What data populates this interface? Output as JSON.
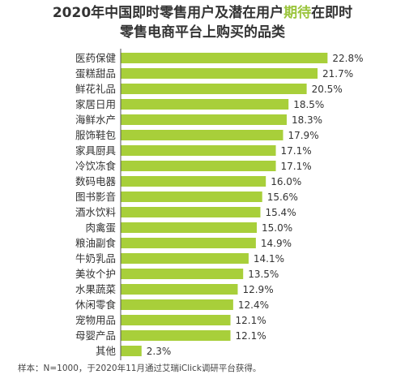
{
  "title": {
    "line1_part1": "2020年中国即时零售用户及潜在用户",
    "line1_highlight": "期待",
    "line1_part2": "在即时",
    "line2": "零售电商平台上购买的品类"
  },
  "footnote": "样本：N=1000，于2020年11月通过艾瑞iClick调研平台获得。",
  "colors": {
    "bar": "#a8cf3a",
    "highlight": "#9bc53d",
    "text": "#333333",
    "axis": "#555555"
  },
  "chart_data": {
    "type": "bar",
    "orientation": "horizontal",
    "categories": [
      "医药保健",
      "蛋糕甜品",
      "鲜花礼品",
      "家居日用",
      "海鲜水产",
      "服饰鞋包",
      "家具厨具",
      "冷饮冻食",
      "数码电器",
      "图书影音",
      "酒水饮料",
      "肉禽蛋",
      "粮油副食",
      "牛奶乳品",
      "美妆个护",
      "水果蔬菜",
      "休闲零食",
      "宠物用品",
      "母婴产品",
      "其他"
    ],
    "values": [
      22.8,
      21.7,
      20.5,
      18.5,
      18.3,
      17.9,
      17.1,
      17.1,
      16.0,
      15.6,
      15.4,
      15.0,
      14.9,
      14.1,
      13.5,
      12.9,
      12.4,
      12.1,
      12.1,
      2.3
    ],
    "value_labels": [
      "22.8%",
      "21.7%",
      "20.5%",
      "18.5%",
      "18.3%",
      "17.9%",
      "17.1%",
      "17.1%",
      "16.0%",
      "15.6%",
      "15.4%",
      "15.0%",
      "14.9%",
      "14.1%",
      "13.5%",
      "12.9%",
      "12.4%",
      "12.1%",
      "12.1%",
      "2.3%"
    ],
    "unit": "%",
    "xlim": [
      0,
      25
    ],
    "grid": false,
    "legend": "none"
  }
}
